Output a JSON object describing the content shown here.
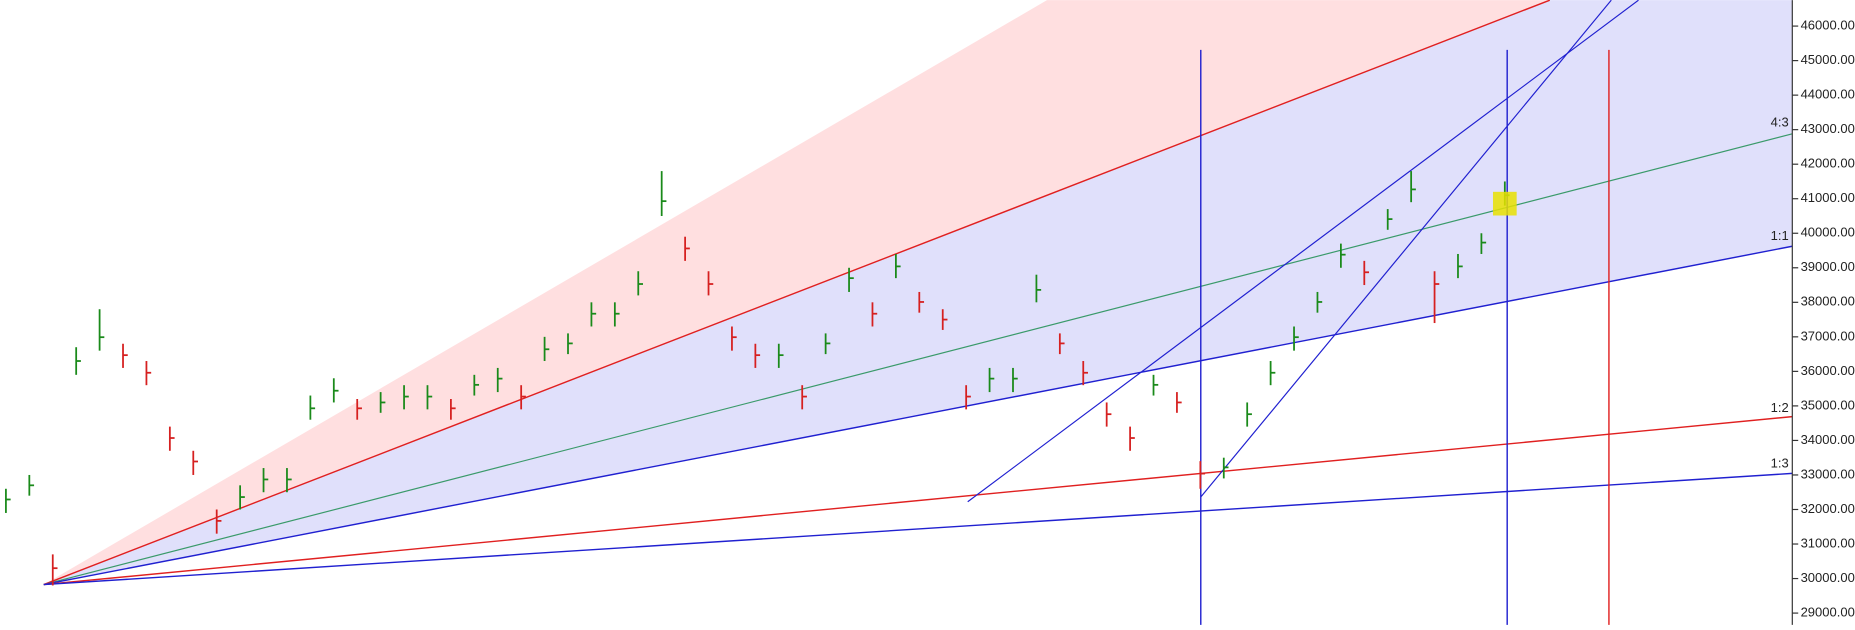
{
  "chart_data": {
    "type": "ohlc",
    "ylim": [
      28660,
      46750
    ],
    "yticks": [
      {
        "value": 29000,
        "label": "29000.00"
      },
      {
        "value": 30000,
        "label": "30000.00"
      },
      {
        "value": 31000,
        "label": "31000.00"
      },
      {
        "value": 32000,
        "label": "32000.00"
      },
      {
        "value": 33000,
        "label": "33000.00"
      },
      {
        "value": 34000,
        "label": "34000.00"
      },
      {
        "value": 35000,
        "label": "35000.00"
      },
      {
        "value": 36000,
        "label": "36000.00"
      },
      {
        "value": 37000,
        "label": "37000.00"
      },
      {
        "value": 38000,
        "label": "38000.00"
      },
      {
        "value": 39000,
        "label": "39000.00"
      },
      {
        "value": 40000,
        "label": "40000.00"
      },
      {
        "value": 41000,
        "label": "41000.00"
      },
      {
        "value": 42000,
        "label": "42000.00"
      },
      {
        "value": 43000,
        "label": "43000.00"
      },
      {
        "value": 44000,
        "label": "44000.00"
      },
      {
        "value": 45000,
        "label": "45000.00"
      },
      {
        "value": 46000,
        "label": "46000.00"
      }
    ],
    "close": [
      32290,
      32700,
      30300,
      36300,
      36990,
      36470,
      35960,
      34070,
      33390,
      31670,
      32360,
      32870,
      32870,
      34930,
      35440,
      34930,
      35100,
      35270,
      35270,
      34930,
      35610,
      35790,
      35270,
      36640,
      36810,
      37670,
      37670,
      38530,
      40930,
      39560,
      38530,
      36990,
      36470,
      36470,
      35270,
      36810,
      38700,
      37670,
      39040,
      38010,
      37500,
      35270,
      35790,
      35790,
      38360,
      36810,
      35960,
      34760,
      34070,
      35610,
      35100,
      33040,
      33220,
      34760,
      35960,
      36990,
      38010,
      39380,
      38870,
      40410,
      41270,
      38530,
      39040,
      39730,
      41100
    ],
    "high": [
      32600,
      33000,
      30700,
      36700,
      37800,
      36800,
      36300,
      34400,
      33700,
      32000,
      32700,
      33200,
      33200,
      35300,
      35800,
      35200,
      35400,
      35600,
      35600,
      35200,
      35900,
      36100,
      35600,
      37000,
      37100,
      38000,
      38000,
      38900,
      41800,
      39900,
      38900,
      37300,
      36800,
      36800,
      35600,
      37100,
      39000,
      38000,
      39400,
      38300,
      37800,
      35600,
      36100,
      36100,
      38800,
      37100,
      36300,
      35100,
      34400,
      35900,
      35400,
      33400,
      33500,
      35100,
      36300,
      37300,
      38300,
      39700,
      39200,
      40700,
      41800,
      38900,
      39400,
      40000,
      41500
    ],
    "low": [
      31900,
      32400,
      29800,
      35900,
      36600,
      36100,
      35600,
      33700,
      33000,
      31300,
      32000,
      32500,
      32500,
      34600,
      35100,
      34600,
      34800,
      34900,
      34900,
      34600,
      35300,
      35400,
      34900,
      36300,
      36500,
      37300,
      37300,
      38200,
      40500,
      39200,
      38200,
      36600,
      36100,
      36100,
      34900,
      36500,
      38300,
      37300,
      38700,
      37700,
      37200,
      34900,
      35400,
      35400,
      38000,
      36500,
      35600,
      34400,
      33700,
      35300,
      34800,
      32600,
      32900,
      34400,
      35600,
      36600,
      37700,
      39000,
      38500,
      40100,
      40900,
      37400,
      38700,
      39400,
      40800
    ],
    "up_color": "#1a8a1a",
    "down_color": "#d62020",
    "fan_labels": [
      "4:3",
      "1:1",
      "1:2",
      "1:3"
    ]
  }
}
